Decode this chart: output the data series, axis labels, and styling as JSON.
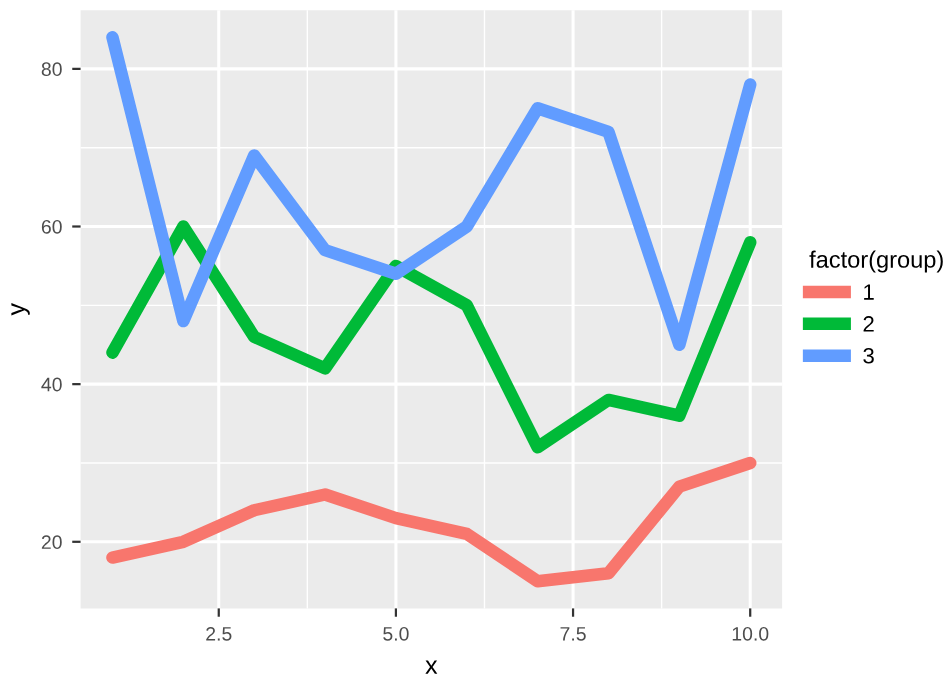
{
  "chart_data": {
    "type": "line",
    "xlabel": "x",
    "ylabel": "y",
    "legend_title": "factor(group)",
    "x": [
      1,
      2,
      3,
      4,
      5,
      6,
      7,
      8,
      9,
      10
    ],
    "series": [
      {
        "name": "1",
        "color": "#f8766d",
        "values": [
          18,
          20,
          24,
          26,
          23,
          21,
          15,
          16,
          27,
          30
        ]
      },
      {
        "name": "2",
        "color": "#00ba38",
        "values": [
          44,
          60,
          46,
          42,
          55,
          50,
          32,
          38,
          36,
          58
        ]
      },
      {
        "name": "3",
        "color": "#619cff",
        "values": [
          84,
          48,
          69,
          57,
          54,
          60,
          75,
          72,
          45,
          78
        ]
      }
    ],
    "xlim": [
      0.55,
      10.45
    ],
    "ylim": [
      11.55,
      87.45
    ],
    "xticks": [
      2.5,
      {
        "value": 5,
        "label": "5.0"
      },
      7.5,
      {
        "value": 10,
        "label": "10.0"
      }
    ],
    "yticks": [
      20,
      40,
      60,
      80
    ],
    "grid": true,
    "legend": "right",
    "line_style": "solid"
  }
}
